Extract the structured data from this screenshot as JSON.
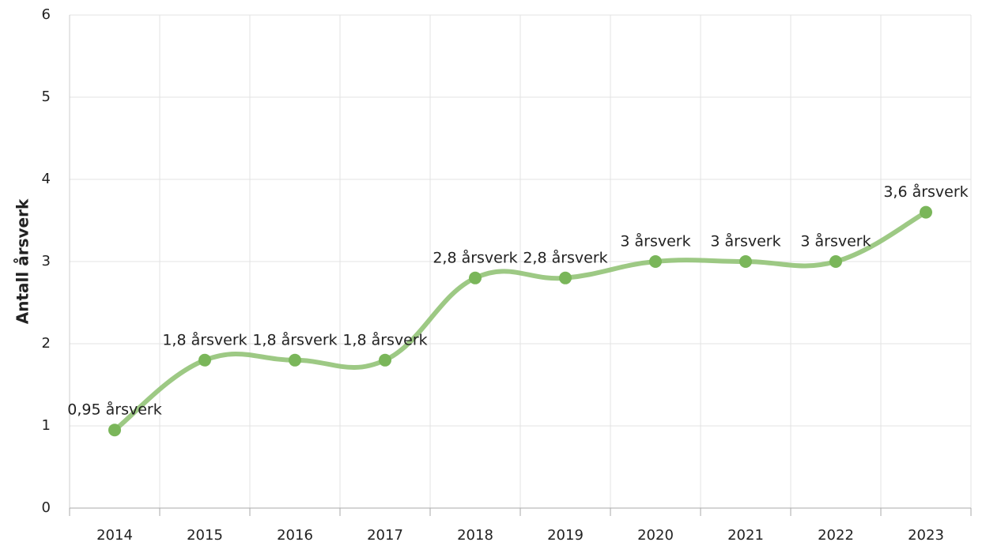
{
  "chart_data": {
    "type": "line",
    "y_label": "Antall årsverk",
    "categories": [
      "2014",
      "2015",
      "2016",
      "2017",
      "2018",
      "2019",
      "2020",
      "2021",
      "2022",
      "2023"
    ],
    "series": [
      {
        "name": "Antall årsverk",
        "color": "#8cc06e",
        "values": [
          0.95,
          1.8,
          1.8,
          1.8,
          2.8,
          2.8,
          3,
          3,
          3,
          3.6
        ],
        "value_labels": [
          "0,95 årsverk",
          "1,8 årsverk",
          "1,8 årsverk",
          "1,8 årsverk",
          "2,8 årsverk",
          "2,8 årsverk",
          "3 årsverk",
          "3 årsverk",
          "3 årsverk",
          "3,6 årsverk"
        ]
      }
    ],
    "ylim": [
      0,
      6
    ],
    "yticks": [
      0,
      1,
      2,
      3,
      4,
      5,
      6
    ],
    "grid": true,
    "smooth": true
  }
}
